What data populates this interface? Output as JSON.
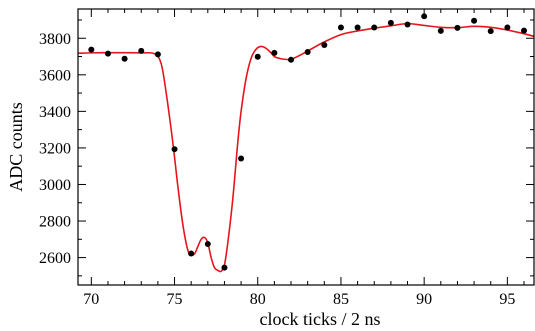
{
  "chart_data": {
    "type": "scatter",
    "title": "",
    "xlabel": "clock ticks / 2 ns",
    "ylabel": "ADC counts",
    "xlim": [
      69.2,
      96.6
    ],
    "ylim": [
      2450,
      3960
    ],
    "xticks": [
      70,
      75,
      80,
      85,
      90,
      95
    ],
    "yticks": [
      2600,
      2800,
      3000,
      3200,
      3400,
      3600,
      3800
    ],
    "grid": false,
    "legend": "none",
    "series": [
      {
        "kind": "points",
        "color": "#000000",
        "x": [
          70,
          71,
          72,
          73,
          74,
          75,
          76,
          77,
          78,
          79,
          80,
          81,
          82,
          83,
          84,
          85,
          86,
          87,
          88,
          89,
          90,
          91,
          92,
          93,
          94,
          95,
          96
        ],
        "y": [
          3738,
          3716,
          3688,
          3731,
          3712,
          3193,
          2622,
          2674,
          2545,
          3142,
          3699,
          3720,
          3682,
          3725,
          3763,
          3859,
          3859,
          3859,
          3884,
          3875,
          3920,
          3840,
          3857,
          3896,
          3839,
          3859,
          3842
        ]
      },
      {
        "kind": "fit-curve",
        "color": "#e8141c",
        "x": [
          69.2,
          70,
          71,
          72,
          73,
          73.8,
          74.2,
          74.5,
          74.8,
          75.0,
          75.2,
          75.5,
          75.8,
          76.0,
          76.2,
          76.4,
          76.6,
          76.8,
          77.0,
          77.2,
          77.4,
          77.6,
          77.8,
          78.0,
          78.2,
          78.5,
          78.8,
          79.0,
          79.3,
          79.6,
          79.9,
          80.2,
          80.5,
          80.8,
          81.0,
          81.3,
          81.6,
          82.0,
          82.5,
          83,
          84,
          85,
          86,
          87,
          88,
          89,
          90,
          91,
          92,
          93,
          94,
          95,
          96,
          96.6
        ],
        "y": [
          3718,
          3720,
          3721,
          3721,
          3720,
          3715,
          3660,
          3500,
          3300,
          3150,
          2990,
          2780,
          2640,
          2615,
          2620,
          2660,
          2700,
          2710,
          2680,
          2600,
          2545,
          2530,
          2525,
          2560,
          2680,
          2920,
          3230,
          3400,
          3580,
          3690,
          3740,
          3755,
          3745,
          3720,
          3700,
          3690,
          3685,
          3685,
          3705,
          3730,
          3780,
          3820,
          3840,
          3855,
          3868,
          3880,
          3870,
          3860,
          3858,
          3865,
          3860,
          3845,
          3825,
          3810
        ]
      }
    ]
  }
}
